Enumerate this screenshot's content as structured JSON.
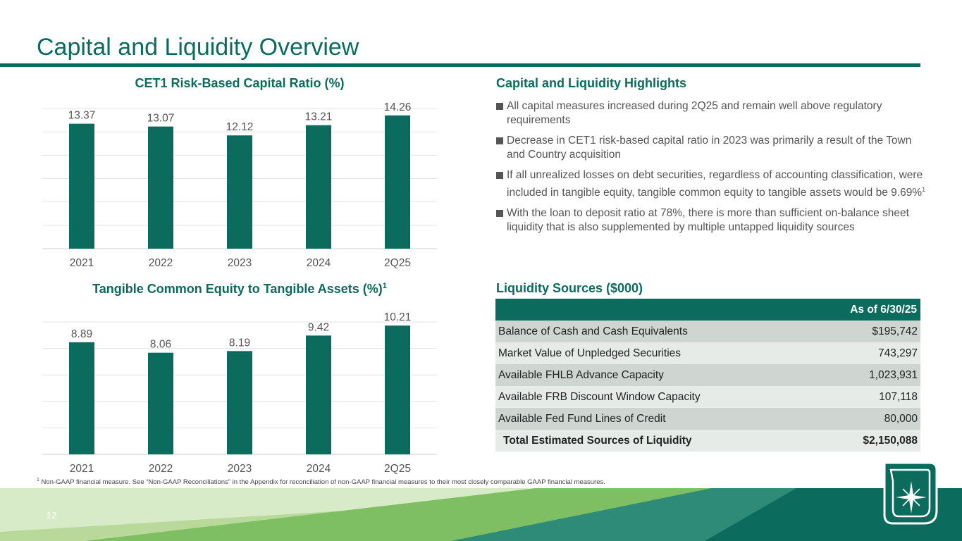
{
  "page": {
    "title": "Capital and Liquidity Overview",
    "page_number": "12",
    "footnote_marker": "1",
    "footnote": "Non-GAAP financial measure. See “Non-GAAP Reconciliations” in the Appendix for reconciliation of non-GAAP financial measures to their most closely comparable GAAP financial measures."
  },
  "colors": {
    "accent": "#0b6b5c",
    "bar": "#0b6b5c",
    "light_green": "#b8d99a",
    "mid_green": "#7fbf63"
  },
  "chart_data": [
    {
      "type": "bar",
      "title": "CET1 Risk-Based Capital Ratio (%)",
      "categories": [
        "2021",
        "2022",
        "2023",
        "2024",
        "2Q25"
      ],
      "values": [
        13.37,
        13.07,
        12.12,
        13.21,
        14.26
      ],
      "value_labels": [
        "13.37",
        "13.07",
        "12.12",
        "13.21",
        "14.26"
      ],
      "ylim": [
        0,
        15
      ],
      "grid": true
    },
    {
      "type": "bar",
      "title": "Tangible Common Equity to Tangible Assets (%)",
      "title_superscript": "1",
      "categories": [
        "2021",
        "2022",
        "2023",
        "2024",
        "2Q25"
      ],
      "values": [
        8.89,
        8.06,
        8.19,
        9.42,
        10.21
      ],
      "value_labels": [
        "8.89",
        "8.06",
        "8.19",
        "9.42",
        "10.21"
      ],
      "ylim": [
        0,
        10.5
      ],
      "grid": true
    }
  ],
  "highlights": {
    "title": "Capital and Liquidity Highlights",
    "bullets": [
      {
        "text": "All capital measures increased during 2Q25 and remain well above regulatory requirements",
        "sup": ""
      },
      {
        "text": "Decrease in CET1 risk-based capital ratio in 2023 was primarily a result of the Town and Country acquisition",
        "sup": ""
      },
      {
        "text": "If all unrealized losses on debt securities, regardless of accounting classification, were included in tangible equity, tangible common equity to tangible assets would be 9.69%",
        "sup": "1"
      },
      {
        "text": "With the loan to deposit ratio at 78%, there is more than sufficient on-balance sheet liquidity that is also supplemented by multiple untapped liquidity sources",
        "sup": ""
      }
    ]
  },
  "liquidity": {
    "title": "Liquidity Sources ($000)",
    "column_header": "As of 6/30/25",
    "rows": [
      {
        "label": "Balance of Cash and Cash Equivalents",
        "value": "$195,742"
      },
      {
        "label": "Market Value of Unpledged Securities",
        "value": "743,297"
      },
      {
        "label": "Available FHLB Advance Capacity",
        "value": "1,023,931"
      },
      {
        "label": "Available FRB Discount Window Capacity",
        "value": "107,118"
      },
      {
        "label": "Available Fed Fund Lines of Credit",
        "value": "80,000"
      }
    ],
    "total": {
      "label": "Total Estimated Sources of Liquidity",
      "value": "$2,150,088"
    }
  }
}
